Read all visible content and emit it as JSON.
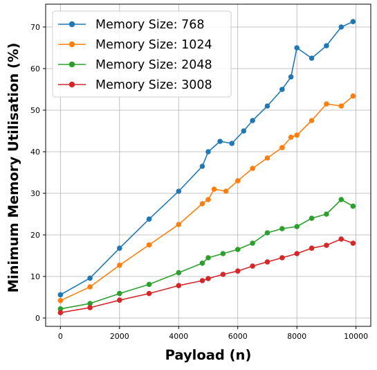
{
  "chart_data": {
    "type": "line",
    "title": "",
    "xlabel": "Payload (n)",
    "ylabel": "Minimum Memory Utilisation (%)",
    "xlim": [
      -500,
      10500
    ],
    "ylim": [
      -2,
      75.5
    ],
    "xticks": [
      0,
      2000,
      4000,
      6000,
      8000,
      10000
    ],
    "yticks": [
      0,
      10,
      20,
      30,
      40,
      50,
      60,
      70
    ],
    "grid": true,
    "legend_position": "top-left",
    "marker": "circle",
    "series": [
      {
        "name": "Memory Size: 768",
        "color": "#1f77b4",
        "points": [
          [
            0,
            5.6
          ],
          [
            1000,
            9.6
          ],
          [
            2000,
            16.8
          ],
          [
            3000,
            23.8
          ],
          [
            4000,
            30.5
          ],
          [
            4800,
            36.5
          ],
          [
            5000,
            40.0
          ],
          [
            5400,
            42.5
          ],
          [
            5800,
            42.0
          ],
          [
            6200,
            45.0
          ],
          [
            6500,
            47.5
          ],
          [
            7000,
            51.0
          ],
          [
            7500,
            55.0
          ],
          [
            7800,
            58.0
          ],
          [
            8000,
            65.0
          ],
          [
            8500,
            62.5
          ],
          [
            9000,
            65.5
          ],
          [
            9500,
            70.0
          ],
          [
            9900,
            71.3
          ]
        ]
      },
      {
        "name": "Memory Size: 1024",
        "color": "#ff7f0e",
        "points": [
          [
            0,
            4.2
          ],
          [
            1000,
            7.5
          ],
          [
            2000,
            12.7
          ],
          [
            3000,
            17.6
          ],
          [
            4000,
            22.5
          ],
          [
            4800,
            27.5
          ],
          [
            5000,
            28.5
          ],
          [
            5200,
            31.0
          ],
          [
            5600,
            30.5
          ],
          [
            6000,
            33.0
          ],
          [
            6500,
            36.0
          ],
          [
            7000,
            38.5
          ],
          [
            7500,
            41.0
          ],
          [
            7800,
            43.5
          ],
          [
            8000,
            44.0
          ],
          [
            8500,
            47.5
          ],
          [
            9000,
            51.5
          ],
          [
            9500,
            51.0
          ],
          [
            9900,
            53.4
          ]
        ]
      },
      {
        "name": "Memory Size: 2048",
        "color": "#2ca02c",
        "points": [
          [
            0,
            2.2
          ],
          [
            1000,
            3.5
          ],
          [
            2000,
            5.9
          ],
          [
            3000,
            8.1
          ],
          [
            4000,
            10.9
          ],
          [
            4800,
            13.2
          ],
          [
            5000,
            14.5
          ],
          [
            5500,
            15.5
          ],
          [
            6000,
            16.5
          ],
          [
            6500,
            18.0
          ],
          [
            7000,
            20.5
          ],
          [
            7500,
            21.5
          ],
          [
            8000,
            22.0
          ],
          [
            8500,
            24.0
          ],
          [
            9000,
            25.0
          ],
          [
            9500,
            28.5
          ],
          [
            9900,
            26.9
          ]
        ]
      },
      {
        "name": "Memory Size: 3008",
        "color": "#d62728",
        "points": [
          [
            0,
            1.3
          ],
          [
            1000,
            2.5
          ],
          [
            2000,
            4.3
          ],
          [
            3000,
            5.9
          ],
          [
            4000,
            7.8
          ],
          [
            4800,
            9.0
          ],
          [
            5000,
            9.5
          ],
          [
            5500,
            10.5
          ],
          [
            6000,
            11.3
          ],
          [
            6500,
            12.5
          ],
          [
            7000,
            13.5
          ],
          [
            7500,
            14.5
          ],
          [
            8000,
            15.5
          ],
          [
            8500,
            16.8
          ],
          [
            9000,
            17.5
          ],
          [
            9500,
            19.0
          ],
          [
            9900,
            18.0
          ]
        ]
      }
    ]
  }
}
